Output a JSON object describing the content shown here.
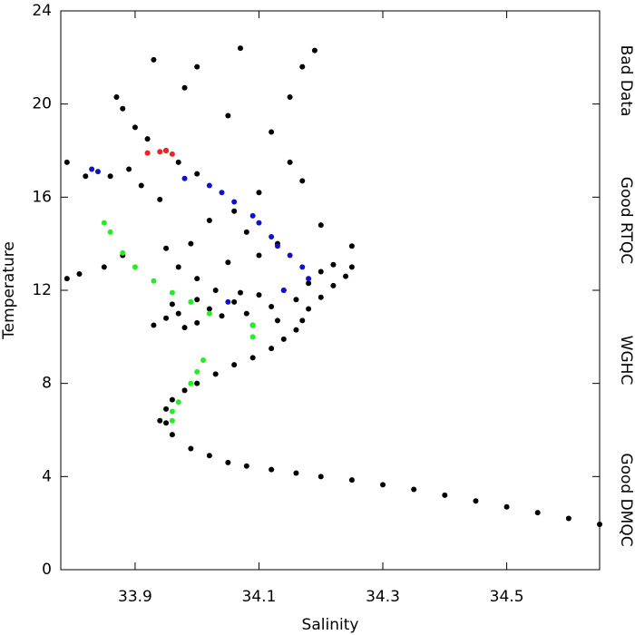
{
  "chart_data": {
    "type": "scatter",
    "x_label": "Salinity",
    "y_label": "Temperature",
    "xlim": [
      33.78,
      34.65
    ],
    "ylim": [
      0,
      24
    ],
    "xticks": [
      33.9,
      34.1,
      34.3,
      34.5
    ],
    "yticks": [
      0,
      4,
      8,
      12,
      16,
      20,
      24
    ],
    "legend_position": "right",
    "series": [
      {
        "name": "Good DMQC",
        "color": "#000000",
        "x": [
          33.99,
          34.02,
          34.05,
          34.08,
          34.12,
          34.16,
          34.2,
          34.25,
          34.3,
          34.35,
          34.4,
          34.45,
          34.5,
          34.55,
          34.6,
          34.65,
          33.96,
          33.95,
          33.94,
          33.95,
          33.96,
          33.98,
          34.0,
          34.03,
          34.06,
          34.09,
          34.12,
          34.14,
          34.16,
          34.17,
          34.18,
          34.2,
          34.22,
          34.24,
          34.25,
          33.87,
          33.88,
          33.9,
          33.92,
          33.95,
          33.97,
          34.0,
          33.93,
          34.07,
          34.19,
          34.17,
          34.0,
          33.98,
          34.05,
          34.15,
          34.12,
          34.15,
          34.17,
          34.1,
          34.06,
          34.02,
          33.99,
          34.08,
          34.13,
          34.2,
          34.25,
          33.79,
          33.82,
          33.86,
          33.89,
          33.91,
          33.94,
          33.79,
          33.81,
          33.85,
          33.88,
          33.95,
          33.97,
          34.0,
          34.05,
          34.1,
          34.2,
          34.22,
          33.93,
          33.95,
          33.97,
          34.0,
          34.02,
          34.04,
          34.06,
          34.08,
          34.1,
          34.12,
          34.14,
          34.0,
          33.98,
          34.03,
          34.09,
          34.13,
          34.16,
          34.18,
          34.07,
          33.96
        ],
        "y": [
          5.2,
          4.9,
          4.6,
          4.45,
          4.3,
          4.15,
          4.0,
          3.85,
          3.65,
          3.45,
          3.2,
          2.95,
          2.7,
          2.45,
          2.2,
          1.95,
          5.8,
          6.3,
          6.4,
          6.9,
          7.3,
          7.7,
          8.0,
          8.4,
          8.8,
          9.1,
          9.5,
          9.9,
          10.3,
          10.7,
          11.2,
          11.7,
          12.2,
          12.6,
          13.0,
          20.3,
          19.8,
          19.0,
          18.5,
          18.0,
          17.5,
          17.0,
          21.9,
          22.4,
          22.3,
          21.6,
          21.6,
          20.7,
          19.5,
          20.3,
          18.8,
          17.5,
          16.7,
          16.2,
          15.4,
          15.0,
          14.0,
          14.5,
          14.0,
          14.8,
          13.9,
          17.5,
          16.9,
          16.9,
          17.2,
          16.5,
          15.9,
          12.5,
          12.7,
          13.0,
          13.5,
          13.8,
          13.0,
          12.5,
          13.2,
          13.5,
          12.8,
          13.1,
          10.5,
          10.8,
          11.0,
          10.6,
          11.2,
          10.9,
          11.5,
          11.0,
          11.8,
          11.3,
          12.0,
          11.6,
          10.4,
          12.0,
          10.5,
          10.7,
          11.6,
          12.3,
          11.9,
          11.4
        ]
      },
      {
        "name": "WGHC",
        "color": "#22ee22",
        "x": [
          33.85,
          33.86,
          33.88,
          33.9,
          33.93,
          33.96,
          33.99,
          34.02,
          34.09,
          34.09,
          34.01,
          34.0,
          33.99,
          33.97,
          33.96,
          33.96
        ],
        "y": [
          14.9,
          14.5,
          13.6,
          13.0,
          12.4,
          11.9,
          11.5,
          11.0,
          10.5,
          10.0,
          9.0,
          8.5,
          8.0,
          7.2,
          6.8,
          6.4
        ]
      },
      {
        "name": "Good RTQC",
        "color": "#1111cc",
        "x": [
          33.83,
          33.84,
          33.98,
          34.02,
          34.04,
          34.06,
          34.09,
          34.1,
          34.12,
          34.13,
          34.15,
          34.17,
          34.18,
          34.14,
          34.05
        ],
        "y": [
          17.2,
          17.1,
          16.8,
          16.5,
          16.2,
          15.8,
          15.2,
          14.9,
          14.3,
          13.9,
          13.5,
          13.0,
          12.5,
          12.0,
          11.5
        ]
      },
      {
        "name": "Bad Data",
        "color": "#ee2222",
        "x": [
          33.92,
          33.94,
          33.96,
          33.95
        ],
        "y": [
          17.9,
          17.95,
          17.85,
          18.0
        ]
      }
    ]
  }
}
